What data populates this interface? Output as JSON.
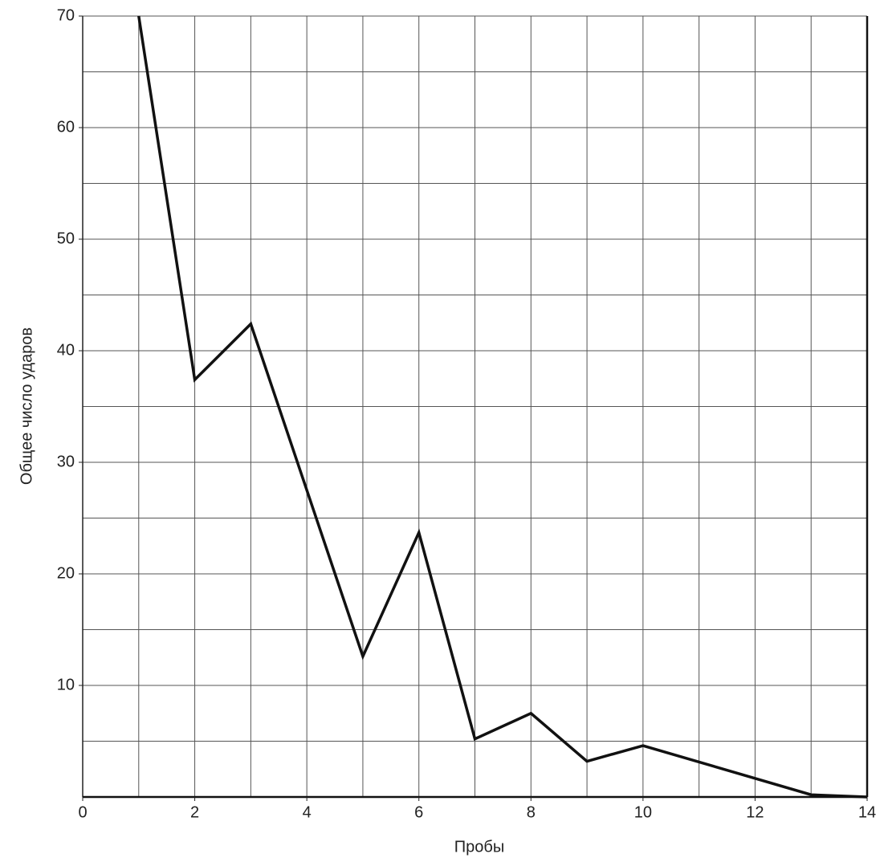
{
  "chart_data": {
    "type": "line",
    "x_label": "Пробы",
    "y_label": "Общее число ударов",
    "x": [
      1,
      2,
      3,
      5,
      6,
      7,
      8,
      9,
      10,
      13,
      14
    ],
    "series": [
      {
        "color": "#111111",
        "values": [
          70,
          37.4,
          42.4,
          12.6,
          23.7,
          5.2,
          7.5,
          3.2,
          4.6,
          0.2,
          0
        ]
      }
    ],
    "xlim": [
      0,
      14
    ],
    "ylim": [
      0,
      70
    ],
    "xticks": [
      0,
      2,
      4,
      6,
      8,
      10,
      12,
      14
    ],
    "yticks": [
      10,
      20,
      30,
      40,
      50,
      60,
      70
    ],
    "xgrid": [
      1,
      2,
      3,
      4,
      5,
      6,
      7,
      8,
      9,
      10,
      11,
      12,
      13,
      14
    ],
    "ygrid": [
      5,
      10,
      15,
      20,
      25,
      30,
      35,
      40,
      45,
      50,
      55,
      60,
      65,
      70
    ],
    "grid": true
  }
}
